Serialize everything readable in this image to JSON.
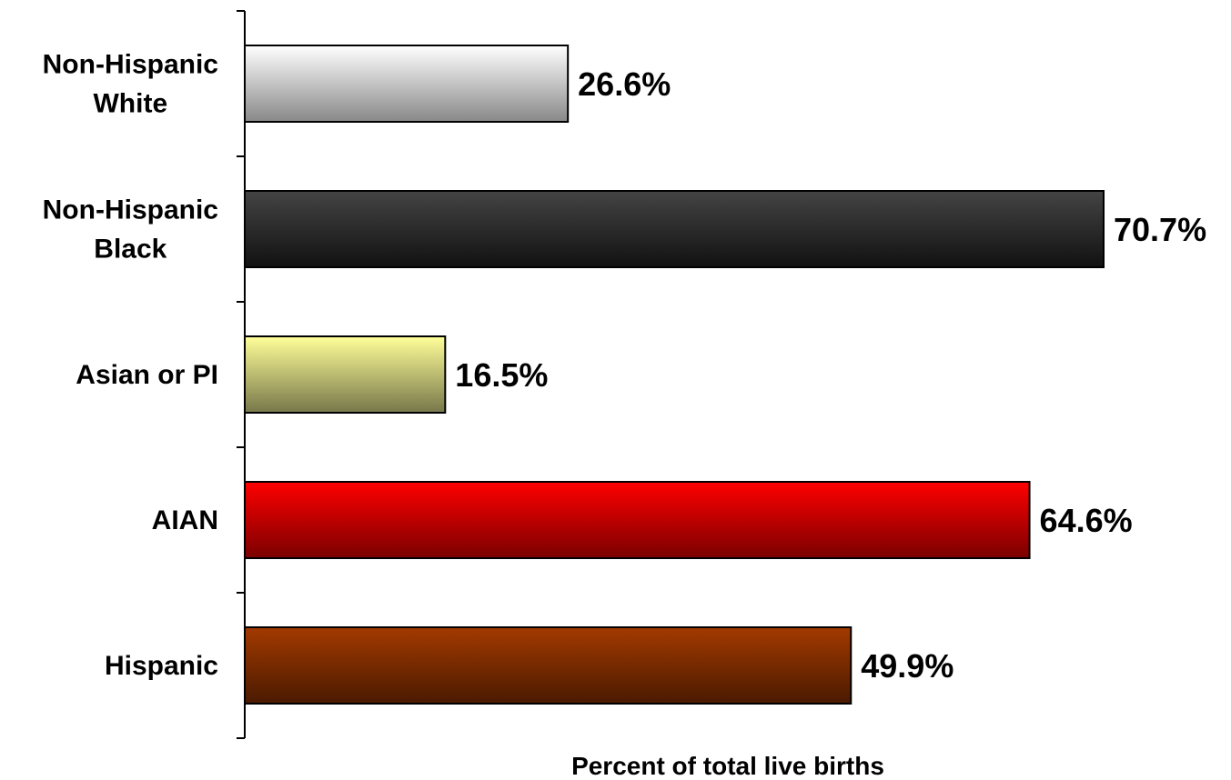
{
  "chart_data": {
    "type": "bar",
    "orientation": "horizontal",
    "categories": [
      [
        "Non-Hispanic",
        "White"
      ],
      [
        "Non-Hispanic",
        "Black"
      ],
      [
        "Asian or PI"
      ],
      [
        "AIAN"
      ],
      [
        "Hispanic"
      ]
    ],
    "values": [
      26.6,
      70.7,
      16.5,
      64.6,
      49.9
    ],
    "value_labels": [
      "26.6%",
      "70.7%",
      "16.5%",
      "64.6%",
      "49.9%"
    ],
    "xlabel": "Percent of total live births",
    "xlim": [
      0,
      80
    ],
    "grid": false,
    "bar_colors": [
      {
        "top": "#ffffff",
        "bottom": "#888888"
      },
      {
        "top": "#444444",
        "bottom": "#111111"
      },
      {
        "top": "#ffff99",
        "bottom": "#77774a"
      },
      {
        "top": "#ff0000",
        "bottom": "#7a0000"
      },
      {
        "top": "#a33a00",
        "bottom": "#4a1a00"
      }
    ]
  }
}
